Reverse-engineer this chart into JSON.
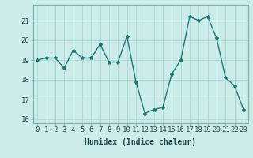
{
  "x": [
    0,
    1,
    2,
    3,
    4,
    5,
    6,
    7,
    8,
    9,
    10,
    11,
    12,
    13,
    14,
    15,
    16,
    17,
    18,
    19,
    20,
    21,
    22,
    23
  ],
  "y": [
    19.0,
    19.1,
    19.1,
    18.6,
    19.5,
    19.1,
    19.1,
    19.8,
    18.9,
    18.9,
    20.2,
    17.9,
    16.3,
    16.5,
    16.6,
    18.3,
    19.0,
    21.2,
    21.0,
    21.2,
    20.1,
    18.1,
    17.7,
    16.5
  ],
  "line_color": "#1a7a6e",
  "marker": "*",
  "marker_size": 3,
  "bg_color": "#ccecea",
  "grid_color": "#aad8d4",
  "xlabel": "Humidex (Indice chaleur)",
  "ylim": [
    15.8,
    21.8
  ],
  "xlim": [
    -0.5,
    23.5
  ],
  "yticks": [
    16,
    17,
    18,
    19,
    20,
    21
  ],
  "xticks": [
    0,
    1,
    2,
    3,
    4,
    5,
    6,
    7,
    8,
    9,
    10,
    11,
    12,
    13,
    14,
    15,
    16,
    17,
    18,
    19,
    20,
    21,
    22,
    23
  ],
  "xlabel_fontsize": 7,
  "tick_fontsize": 6.5,
  "line_width": 1.0
}
